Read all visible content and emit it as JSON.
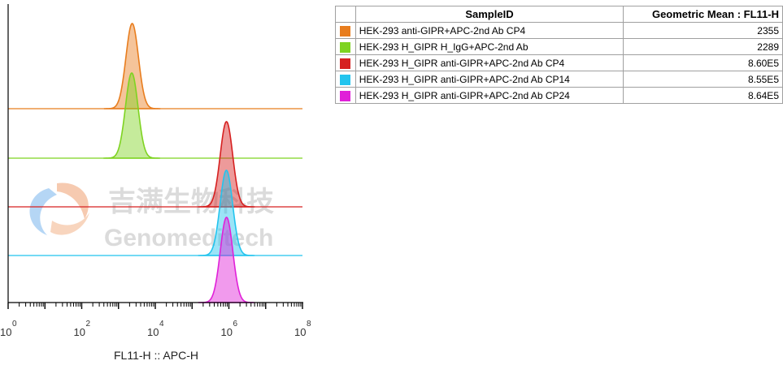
{
  "watermark": {
    "cn": "吉满生物科技",
    "en": "Genomeditech"
  },
  "table": {
    "header_sample": "SampleID",
    "header_mean": "Geometric Mean : FL11-H",
    "rows": [
      {
        "sample": "HEK-293 anti-GIPR+APC-2nd Ab CP4",
        "mean": "2355",
        "color": "#e87d1e"
      },
      {
        "sample": "HEK-293 H_GIPR H_IgG+APC-2nd Ab",
        "mean": "2289",
        "color": "#7ed321"
      },
      {
        "sample": "HEK-293 H_GIPR anti-GIPR+APC-2nd Ab CP4",
        "mean": "8.60E5",
        "color": "#d62020"
      },
      {
        "sample": "HEK-293 H_GIPR anti-GIPR+APC-2nd Ab CP14",
        "mean": "8.55E5",
        "color": "#22c4ee"
      },
      {
        "sample": "HEK-293 H_GIPR anti-GIPR+APC-2nd Ab CP24",
        "mean": "8.64E5",
        "color": "#e020d8"
      }
    ]
  },
  "chart_data": {
    "type": "area",
    "subtype": "staggered flow cytometry histogram overlay",
    "xlabel": "FL11-H :: APC-H",
    "x_scale": "log",
    "xlim": [
      1,
      100000000
    ],
    "x_ticks": [
      {
        "base": "10",
        "exp": "0",
        "value": 1
      },
      {
        "base": "10",
        "exp": "2",
        "value": 100
      },
      {
        "base": "10",
        "exp": "4",
        "value": 10000
      },
      {
        "base": "10",
        "exp": "6",
        "value": 1000000
      },
      {
        "base": "10",
        "exp": "8",
        "value": 100000000
      }
    ],
    "series": [
      {
        "name": "HEK-293 anti-GIPR+APC-2nd Ab CP4",
        "geometric_mean": 2355,
        "color": "#e87d1e"
      },
      {
        "name": "HEK-293 H_GIPR H_IgG+APC-2nd Ab",
        "geometric_mean": 2289,
        "color": "#7ed321"
      },
      {
        "name": "HEK-293 H_GIPR anti-GIPR+APC-2nd Ab CP4",
        "geometric_mean": 860000,
        "color": "#d62020"
      },
      {
        "name": "HEK-293 H_GIPR anti-GIPR+APC-2nd Ab CP14",
        "geometric_mean": 855000,
        "color": "#22c4ee"
      },
      {
        "name": "HEK-293 H_GIPR anti-GIPR+APC-2nd Ab CP24",
        "geometric_mean": 864000,
        "color": "#e020d8"
      }
    ]
  }
}
